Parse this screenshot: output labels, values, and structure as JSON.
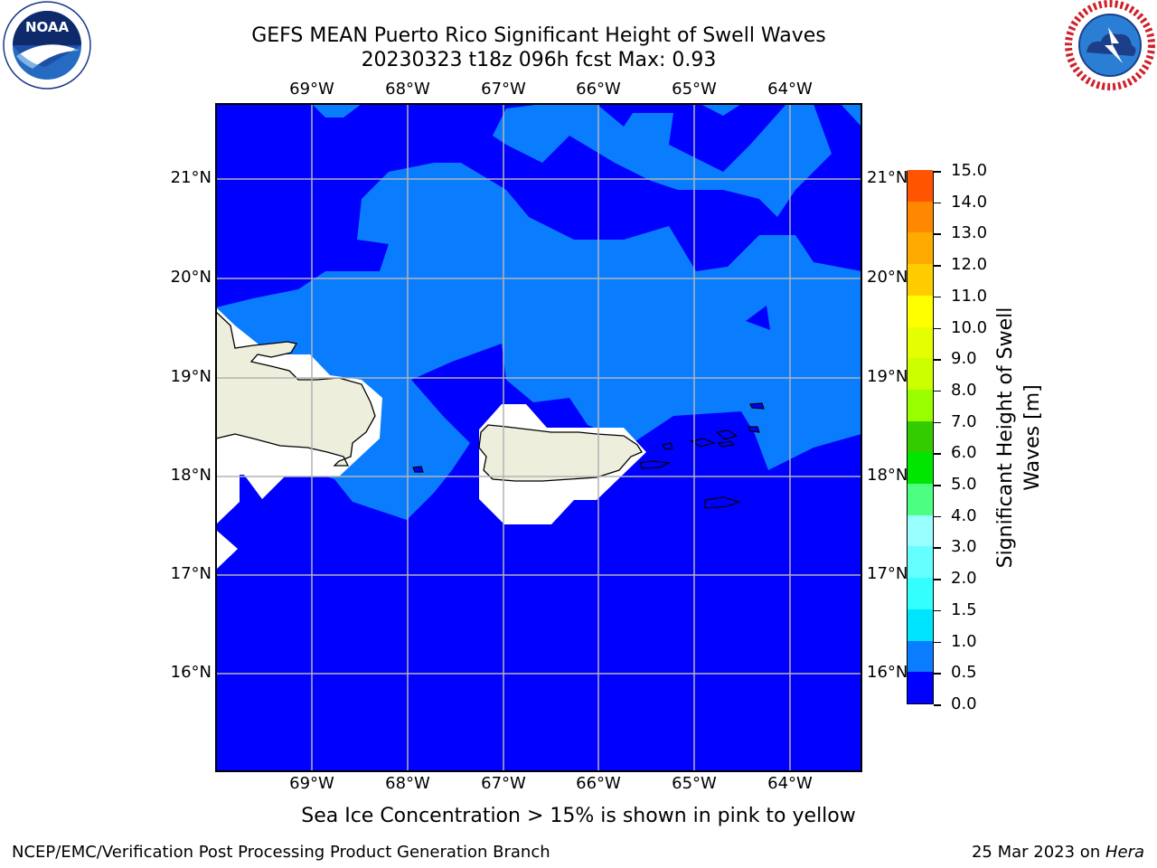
{
  "title_line1": "GEFS MEAN Puerto Rico Significant Height of Swell Waves",
  "title_line2": "20230323 t18z 096h fcst   Max: 0.93",
  "map": {
    "lon_labels": [
      "69°W",
      "68°W",
      "67°W",
      "66°W",
      "65°W",
      "64°W"
    ],
    "lat_labels": [
      "21°N",
      "20°N",
      "19°N",
      "18°N",
      "17°N",
      "16°N"
    ],
    "gridlines": true
  },
  "colorbar": {
    "title": "Significant Height of Swell Waves [m]",
    "title_line1": "Significant Height of Swell",
    "title_line2": "Waves [m]",
    "levels": [
      "0.0",
      "0.5",
      "1.0",
      "1.5",
      "2.0",
      "3.0",
      "4.0",
      "5.0",
      "6.0",
      "7.0",
      "8.0",
      "9.0",
      "10.0",
      "11.0",
      "12.0",
      "13.0",
      "14.0",
      "15.0"
    ],
    "colors": [
      "#0000ff",
      "#0a7dff",
      "#00e5ff",
      "#33ffff",
      "#66ffff",
      "#99ffff",
      "#4dff80",
      "#00e600",
      "#33cc00",
      "#99ff00",
      "#ccff00",
      "#e6ff00",
      "#ffff00",
      "#ffcc00",
      "#ffaa00",
      "#ff8800",
      "#ff5500",
      "#ff2200",
      "#ff0000"
    ]
  },
  "ice_note": "Sea Ice Concentration > 15% is shown in pink to yellow",
  "footer_left": "NCEP/EMC/Verification Post Processing Product Generation Branch",
  "footer_date": "25 Mar 2023 on ",
  "footer_host": "Hera",
  "logos": {
    "left": "noaa-logo",
    "right": "nws-logo",
    "noaa_text": "NOAA"
  }
}
